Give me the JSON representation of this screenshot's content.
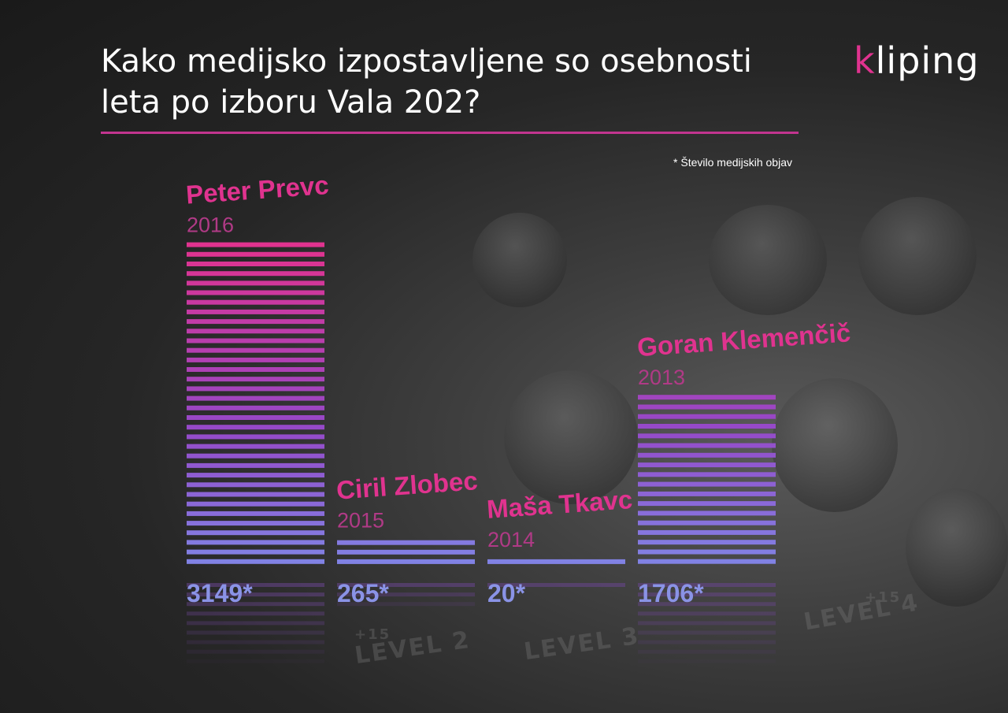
{
  "title": "Kako medijsko izpostavljene so osebnosti leta po izboru Vala 202?",
  "logo": {
    "accent": "k",
    "rest": "liping"
  },
  "note": "* Število medijskih objav",
  "background_text": {
    "level2": "LEVEL 2",
    "level4": "LEVEL 4",
    "level3": "LEVEL 3",
    "plus15a": "+15",
    "plus15b": "+15"
  },
  "colors": {
    "pink": "#e0338f",
    "blue": "#8a93e6",
    "rule": "#c2358f"
  },
  "chart_data": {
    "type": "bar",
    "categories": [
      "Peter Prevc",
      "Ciril Zlobec",
      "Maša Tkavc",
      "Goran Klemenčič"
    ],
    "years": [
      "2016",
      "2015",
      "2014",
      "2013"
    ],
    "values": [
      3149,
      265,
      20,
      1706
    ],
    "value_labels": [
      "3149*",
      "265*",
      "20*",
      "1706*"
    ],
    "ylim": [
      0,
      3149
    ],
    "grid": false
  }
}
